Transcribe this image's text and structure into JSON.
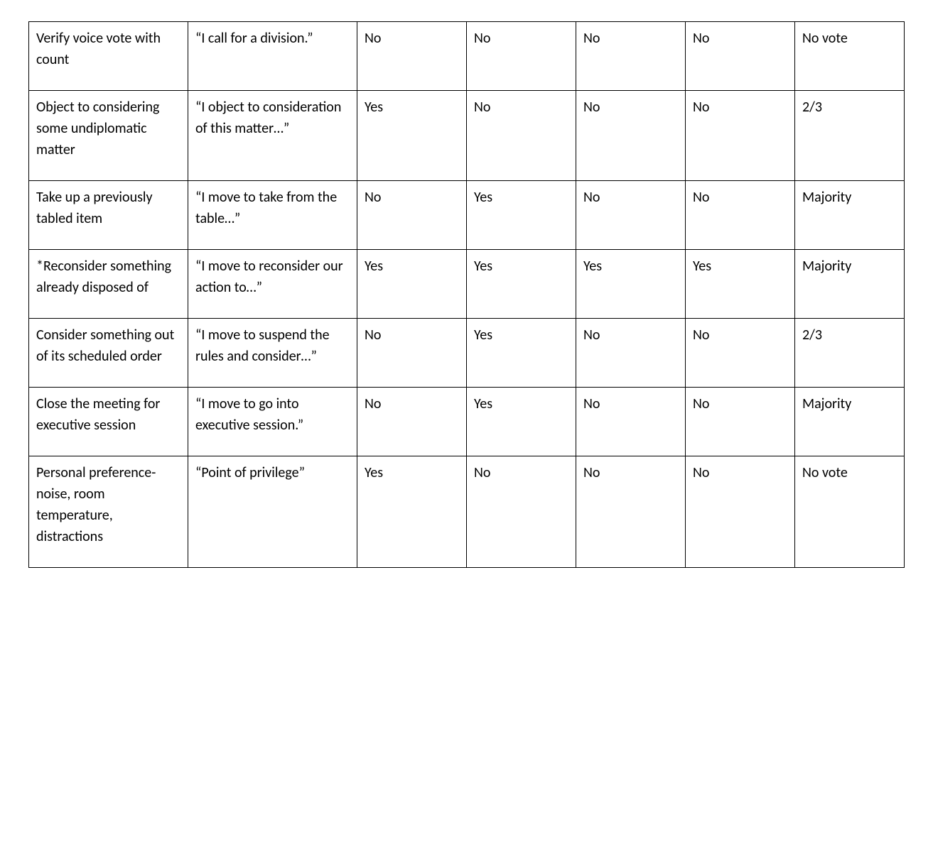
{
  "table": {
    "type": "table",
    "border_color": "#000000",
    "background_color": "#ffffff",
    "text_color": "#000000",
    "font_family": "Calibri",
    "font_size_pt": 15,
    "column_widths_pct": [
      16,
      17,
      11,
      11,
      11,
      11,
      11
    ],
    "cell_align": "left",
    "cell_valign": "top",
    "rows": [
      {
        "action": "Verify voice vote with count",
        "say": "“I call for a division.”",
        "c2": "No",
        "c3": "No",
        "c4": "No",
        "c5": "No",
        "c6": "No vote"
      },
      {
        "action": "Object to considering some undiplomatic matter",
        "say": "“I object to consideration of this matter…”",
        "c2": "Yes",
        "c3": "No",
        "c4": "No",
        "c5": "No",
        "c6": "2/3"
      },
      {
        "action": "Take up a previously tabled item",
        "say": "“I move to take from the table…”",
        "c2": "No",
        "c3": "Yes",
        "c4": "No",
        "c5": "No",
        "c6": "Majority"
      },
      {
        "action": "*Reconsider something already disposed of",
        "say": "“I move to reconsider our action to…”",
        "c2": "Yes",
        "c3": "Yes",
        "c4": "Yes",
        "c5": "Yes",
        "c6": "Majority"
      },
      {
        "action": "Consider something out of its scheduled order",
        "say": "“I move to suspend the rules and consider…”",
        "c2": "No",
        "c3": "Yes",
        "c4": "No",
        "c5": "No",
        "c6": "2/3"
      },
      {
        "action": "Close the meeting for executive session",
        "say": "“I move to go into executive session.”",
        "c2": "No",
        "c3": "Yes",
        "c4": "No",
        "c5": "No",
        "c6": "Majority"
      },
      {
        "action": "Personal preference- noise, room temperature, distractions",
        "say": "“Point of privilege”",
        "c2": "Yes",
        "c3": "No",
        "c4": "No",
        "c5": "No",
        "c6": "No vote"
      }
    ]
  }
}
